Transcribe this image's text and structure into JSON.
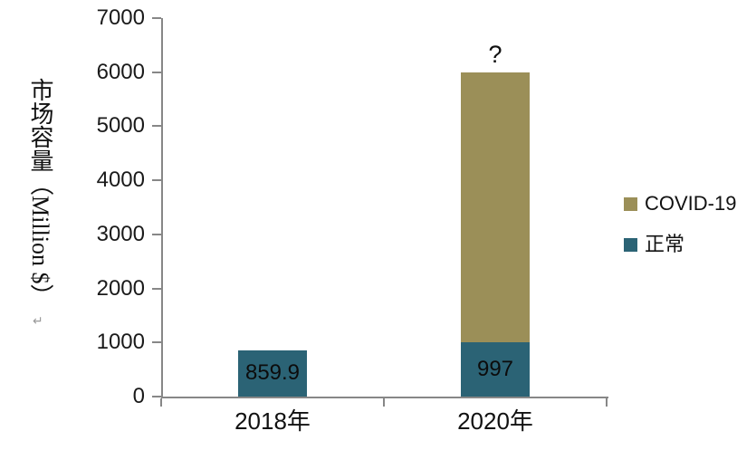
{
  "chart_data": {
    "type": "bar",
    "stacked": true,
    "title": "",
    "ylabel": "市场容量（Million $）",
    "paragraph_mark": "↵",
    "categories": [
      "2018年",
      "2020年"
    ],
    "series": [
      {
        "name": "正常",
        "color": "#2B6375",
        "values": [
          859.9,
          997
        ],
        "data_labels": [
          "859.9",
          "997"
        ]
      },
      {
        "name": "COVID-19",
        "color": "#9B8F58",
        "values": [
          0,
          5003
        ],
        "data_labels": [
          "",
          ""
        ]
      }
    ],
    "stack_totals": [
      859.9,
      6000
    ],
    "annotations": [
      {
        "text": "?",
        "category_index": 1,
        "above_value": 6000
      }
    ],
    "ylim": [
      0,
      7000
    ],
    "yticks": [
      0,
      1000,
      2000,
      3000,
      4000,
      5000,
      6000,
      7000
    ],
    "grid": false,
    "axis_color": "#878787",
    "legend": {
      "position": "right",
      "items": [
        {
          "label": "COVID-19",
          "color": "#9B8F58"
        },
        {
          "label": "正常",
          "color": "#2B6375"
        }
      ]
    }
  }
}
